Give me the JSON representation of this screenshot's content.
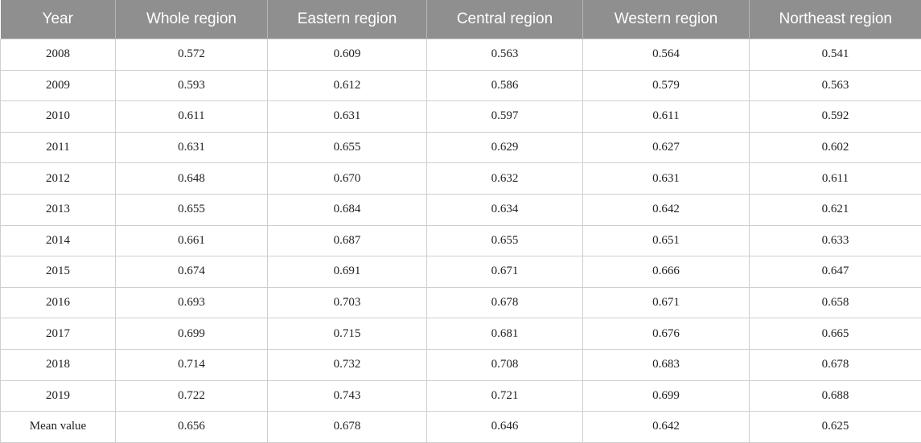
{
  "table": {
    "headers": [
      "Year",
      "Whole region",
      "Eastern region",
      "Central region",
      "Western region",
      "Northeast region"
    ],
    "rows": [
      [
        "2008",
        "0.572",
        "0.609",
        "0.563",
        "0.564",
        "0.541"
      ],
      [
        "2009",
        "0.593",
        "0.612",
        "0.586",
        "0.579",
        "0.563"
      ],
      [
        "2010",
        "0.611",
        "0.631",
        "0.597",
        "0.611",
        "0.592"
      ],
      [
        "2011",
        "0.631",
        "0.655",
        "0.629",
        "0.627",
        "0.602"
      ],
      [
        "2012",
        "0.648",
        "0.670",
        "0.632",
        "0.631",
        "0.611"
      ],
      [
        "2013",
        "0.655",
        "0.684",
        "0.634",
        "0.642",
        "0.621"
      ],
      [
        "2014",
        "0.661",
        "0.687",
        "0.655",
        "0.651",
        "0.633"
      ],
      [
        "2015",
        "0.674",
        "0.691",
        "0.671",
        "0.666",
        "0.647"
      ],
      [
        "2016",
        "0.693",
        "0.703",
        "0.678",
        "0.671",
        "0.658"
      ],
      [
        "2017",
        "0.699",
        "0.715",
        "0.681",
        "0.676",
        "0.665"
      ],
      [
        "2018",
        "0.714",
        "0.732",
        "0.708",
        "0.683",
        "0.678"
      ],
      [
        "2019",
        "0.722",
        "0.743",
        "0.721",
        "0.699",
        "0.688"
      ],
      [
        "Mean value",
        "0.656",
        "0.678",
        "0.646",
        "0.642",
        "0.625"
      ]
    ]
  },
  "colors": {
    "header_bg": "#8f8f8f",
    "header_text": "#ffffff",
    "grid": "#cfcfcf"
  }
}
